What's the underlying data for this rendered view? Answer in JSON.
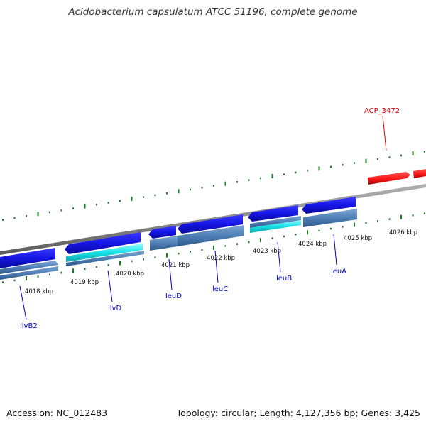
{
  "title": "Acidobacterium capsulatum ATCC 51196, complete genome",
  "accession_text": "Accession: NC_012483",
  "summary_text": "Topology: circular; Length: 4,127,356 bp; Genes: 3,425",
  "colors": {
    "backbone": "#8c8c8c",
    "tick": "#1e7d1e",
    "gene_forward": "#1515e6",
    "gene_reverse": "#1515e6",
    "gene_highlight": "#ff1a1a",
    "cds_steel": "#4f7fb6",
    "cds_cyan": "#15e0e6",
    "label_blue": "#0000cc",
    "label_red": "#dd0000"
  },
  "scale_labels": [
    "4018 kbp",
    "4019 kbp",
    "4020 kbp",
    "4021 kbp",
    "4022 kbp",
    "4023 kbp",
    "4024 kbp",
    "4025 kbp",
    "4026 kbp"
  ],
  "gene_labels": [
    {
      "text": "ilvB2",
      "color": "label_blue"
    },
    {
      "text": "ilvD",
      "color": "label_blue"
    },
    {
      "text": "leuD",
      "color": "label_blue"
    },
    {
      "text": "leuC",
      "color": "label_blue"
    },
    {
      "text": "leuB",
      "color": "label_blue"
    },
    {
      "text": "leuA",
      "color": "label_blue"
    },
    {
      "text": "ACP_3472",
      "color": "label_red"
    }
  ]
}
